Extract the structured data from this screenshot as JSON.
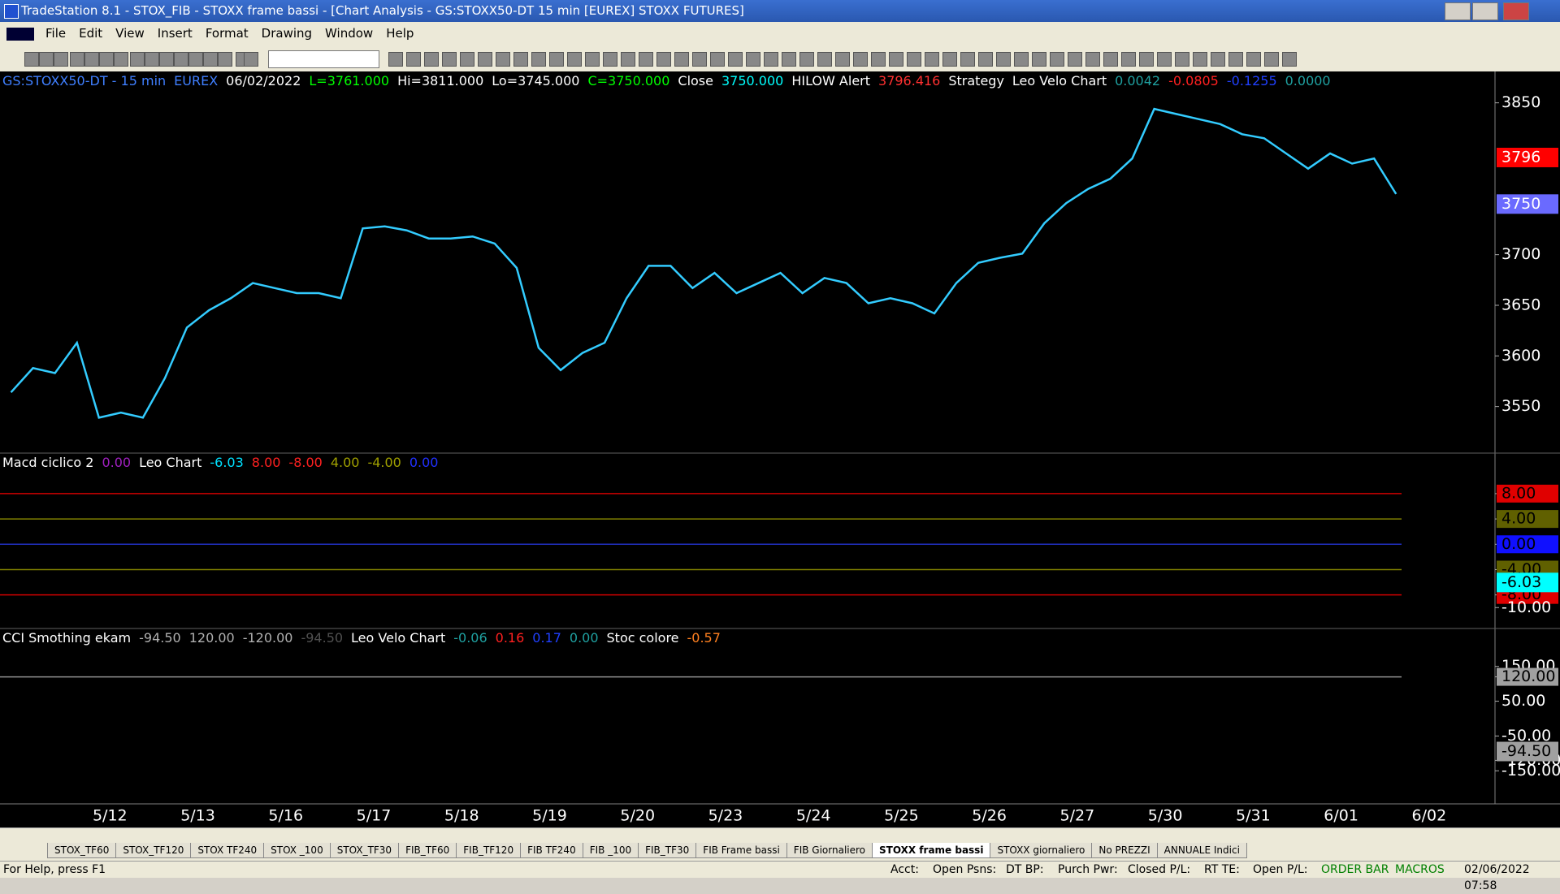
{
  "title_bar": {
    "title": "TradeStation 8.1 - STOX_FIB - STOXX frame bassi - [Chart Analysis - GS:STOXX50-DT  15 min  [EUREX] STOXX FUTURES]"
  },
  "menu": [
    "File",
    "Edit",
    "View",
    "Insert",
    "Format",
    "Drawing",
    "Window",
    "Help"
  ],
  "chart_header": [
    {
      "text": "GS:STOXX50-DT - 15 min",
      "color": "#3f7fff"
    },
    {
      "text": "EUREX",
      "color": "#3f7fff"
    },
    {
      "text": "06/02/2022",
      "color": "#ffffff"
    },
    {
      "text": "L=3761.000",
      "color": "#00ff00"
    },
    {
      "text": "Hi=3811.000",
      "color": "#ffffff"
    },
    {
      "text": "Lo=3745.000",
      "color": "#ffffff"
    },
    {
      "text": "C=3750.000",
      "color": "#00ff00"
    },
    {
      "text": "Close",
      "color": "#ffffff"
    },
    {
      "text": "3750.000",
      "color": "#00ffff"
    },
    {
      "text": "HILOW Alert",
      "color": "#ffffff"
    },
    {
      "text": "3796.416",
      "color": "#ff3030"
    },
    {
      "text": "Strategy",
      "color": "#ffffff"
    },
    {
      "text": "Leo Velo Chart",
      "color": "#ffffff"
    },
    {
      "text": "0.0042",
      "color": "#1fa0a0"
    },
    {
      "text": "-0.0805",
      "color": "#ff2020"
    },
    {
      "text": "-0.1255",
      "color": "#2040ff"
    },
    {
      "text": "0.0000",
      "color": "#1fa0a0"
    }
  ],
  "chart_data": {
    "type": "line",
    "categories": [
      null,
      null,
      null,
      null,
      null,
      "5/12",
      null,
      null,
      null,
      "5/13",
      null,
      null,
      null,
      "5/16",
      null,
      null,
      null,
      "5/17",
      null,
      null,
      null,
      "5/18",
      null,
      null,
      null,
      "5/19",
      null,
      null,
      null,
      "5/20",
      null,
      null,
      null,
      "5/23",
      null,
      null,
      null,
      "5/24",
      null,
      null,
      null,
      "5/25",
      null,
      null,
      null,
      "5/26",
      null,
      null,
      null,
      "5/27",
      null,
      null,
      null,
      "5/30",
      null,
      null,
      null,
      "5/31",
      null,
      null,
      null,
      "6/01",
      null,
      null,
      null,
      "6/02",
      null,
      null
    ],
    "series": [
      {
        "color": "#33ccff",
        "values": [
          3564,
          3588,
          3583,
          3613,
          3539,
          3544,
          3539,
          3578,
          3628,
          3645,
          3657,
          3672,
          3667,
          3662,
          3662,
          3657,
          3726,
          3728,
          3724,
          3716,
          3716,
          3718,
          3711,
          3687,
          3608,
          3586,
          3603,
          3613,
          3657,
          3689,
          3689,
          3667,
          3682,
          3662,
          3672,
          3682,
          3662,
          3677,
          3672,
          3652,
          3657,
          3652,
          3642,
          3672,
          3692,
          3697,
          3701,
          3731,
          3751,
          3765,
          3775,
          3795,
          3844,
          3839,
          3834,
          3829,
          3819,
          3815,
          3800,
          3785,
          3800,
          3790,
          3795,
          3760,
          null,
          null,
          null,
          null
        ]
      }
    ],
    "ylim": [
      3504,
      3881
    ],
    "yticks": [
      3550,
      3600,
      3650,
      3700,
      3850
    ],
    "price_markers": [
      {
        "value": 3796,
        "bg": "#ff0000",
        "fg": "#ffffff"
      },
      {
        "value": 3750,
        "bg": "#6a6aff",
        "fg": "#ffffff"
      }
    ]
  },
  "indicator_panels": [
    {
      "header": [
        {
          "text": "Macd ciclico 2",
          "color": "#ffffff"
        },
        {
          "text": "0.00",
          "color": "#a020c0"
        },
        {
          "text": "Leo Chart",
          "color": "#ffffff"
        },
        {
          "text": "-6.03",
          "color": "#00e0ff"
        },
        {
          "text": "8.00",
          "color": "#ff2020"
        },
        {
          "text": "-8.00",
          "color": "#ff2020"
        },
        {
          "text": "4.00",
          "color": "#a0a000"
        },
        {
          "text": "-4.00",
          "color": "#a0a000"
        },
        {
          "text": "0.00",
          "color": "#2030ff"
        }
      ],
      "ylim": [
        -13.3,
        14.4
      ],
      "yticks": [
        {
          "value": 8,
          "label": "8.00",
          "bg": "#e00000",
          "line": "#d00000"
        },
        {
          "value": 4,
          "label": "4.00",
          "bg": "#606000",
          "line": "#808000"
        },
        {
          "value": 0,
          "label": "0.00",
          "bg": "#1010ff",
          "line": "#2030c0"
        },
        {
          "value": -4,
          "label": "-4.00",
          "bg": "#606000",
          "line": "#808000"
        },
        {
          "value": -8,
          "label": "-8.00",
          "bg": "#e00000",
          "line": "#d00000"
        },
        {
          "value": -10,
          "label": "-10.00"
        }
      ],
      "markers": [
        {
          "value": -6.03,
          "label": "-6.03",
          "bg": "#00ffff",
          "fg": "#000000"
        }
      ]
    },
    {
      "header": [
        {
          "text": "CCI Smothing ekam",
          "color": "#ffffff"
        },
        {
          "text": "-94.50",
          "color": "#b0b0b0"
        },
        {
          "text": "120.00",
          "color": "#b0b0b0"
        },
        {
          "text": "-120.00",
          "color": "#b0b0b0"
        },
        {
          "text": "-94.50",
          "color": "#505050"
        },
        {
          "text": "Leo Velo Chart",
          "color": "#ffffff"
        },
        {
          "text": "-0.06",
          "color": "#1fa0a0"
        },
        {
          "text": "0.16",
          "color": "#ff2020"
        },
        {
          "text": "0.17",
          "color": "#2040ff"
        },
        {
          "text": "0.00",
          "color": "#1fa0a0"
        },
        {
          "text": "Stoc colore",
          "color": "#ffffff"
        },
        {
          "text": "-0.57",
          "color": "#ff8020"
        }
      ],
      "ylim": [
        -245,
        259
      ],
      "yticks": [
        {
          "value": 150,
          "label": "150.00"
        },
        {
          "value": 120,
          "label": "120.00",
          "bg": "#a0a0a0",
          "line": "#909090"
        },
        {
          "value": 50,
          "label": "50.00"
        },
        {
          "value": -50,
          "label": "-50.00"
        },
        {
          "value": -120,
          "label": "-120.00"
        },
        {
          "value": -150,
          "label": "-150.00"
        }
      ],
      "markers": [
        {
          "value": -94.5,
          "label": "-94.50",
          "bg": "#a0a0a0",
          "fg": "#000000"
        }
      ]
    }
  ],
  "tabs": [
    "STOX_TF60",
    "STOX_TF120",
    "STOX TF240",
    "STOX _100",
    "STOX_TF30",
    "FIB_TF60",
    "FIB_TF120",
    "FIB TF240",
    "FIB _100",
    "FIB_TF30",
    "FIB Frame bassi",
    "FIB Giornaliero",
    "STOXX frame bassi",
    "STOXX giornaliero",
    "No PREZZI",
    "ANNUALE Indici"
  ],
  "active_tab": 12,
  "status_bar": {
    "help": "For Help, press F1",
    "fields": [
      "Acct:",
      "Open Psns:",
      "DT BP:",
      "Purch Pwr:",
      "Closed P/L:",
      "RT TE:",
      "Open P/L:"
    ],
    "order_bar": "ORDER BAR",
    "macros": "MACROS",
    "datetime": "02/06/2022 07:58"
  }
}
